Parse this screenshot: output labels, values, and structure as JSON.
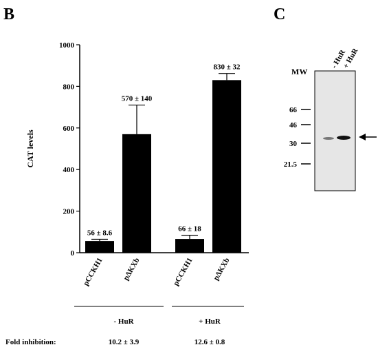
{
  "panel_b_label": "B",
  "panel_c_label": "C",
  "chart_data": {
    "type": "bar",
    "title": "",
    "ylabel": "CAT levels",
    "xlabel": "",
    "ylim": [
      0,
      1000
    ],
    "yticks": [
      0,
      200,
      400,
      600,
      800,
      1000
    ],
    "categories": [
      "pCCKH1",
      "pΔKXb",
      "pCCKH1",
      "pΔKXb"
    ],
    "values": [
      56,
      570,
      66,
      830
    ],
    "errors": [
      8.6,
      140,
      18,
      32
    ],
    "data_labels": [
      "56 ± 8.6",
      "570 ± 140",
      "66 ± 18",
      "830 ± 32"
    ],
    "bar_color": "#000000",
    "groups": [
      {
        "label": "- HuR",
        "fold": "10.2 ± 3.9"
      },
      {
        "label": "+ HuR",
        "fold": "12.6 ± 0.8"
      }
    ],
    "fold_label": "Fold inhibition:"
  },
  "blot": {
    "mw_label": "MW",
    "lane_labels": [
      "- HuR",
      "+ HuR"
    ],
    "markers": [
      "66",
      "46",
      "30",
      "21.5"
    ]
  }
}
